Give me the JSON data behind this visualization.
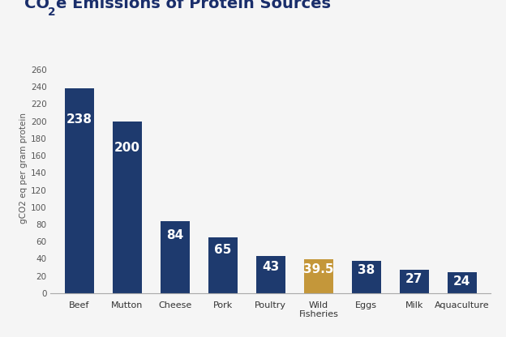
{
  "categories": [
    "Beef",
    "Mutton",
    "Cheese",
    "Pork",
    "Poultry",
    "Wild\nFisheries",
    "Eggs",
    "Milk",
    "Aquaculture"
  ],
  "values": [
    238,
    200,
    84,
    65,
    43,
    39.5,
    38,
    27,
    24
  ],
  "bar_colors": [
    "#1e3a6e",
    "#1e3a6e",
    "#1e3a6e",
    "#1e3a6e",
    "#1e3a6e",
    "#c4973a",
    "#1e3a6e",
    "#1e3a6e",
    "#1e3a6e"
  ],
  "value_colors": [
    "#1e3a6e",
    "#1e3a6e",
    "#1e3a6e",
    "#1e3a6e",
    "#1e3a6e",
    "#c4973a",
    "#1e3a6e",
    "#1e3a6e",
    "#1e3a6e"
  ],
  "title_color": "#1a2e6b",
  "ylabel": "gCO2 eq per gram protein",
  "ylim": [
    0,
    290
  ],
  "yticks": [
    0,
    20,
    40,
    60,
    80,
    100,
    120,
    140,
    160,
    180,
    200,
    220,
    240,
    260
  ],
  "background_color": "#f5f5f5",
  "value_fontsize": 11,
  "label_fontsize": 8,
  "ylabel_fontsize": 7.5,
  "title_fontsize": 14
}
